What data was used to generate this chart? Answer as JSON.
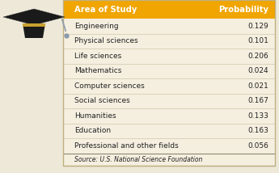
{
  "header": [
    "Area of Study",
    "Probability"
  ],
  "rows": [
    [
      "Engineering",
      "0.129"
    ],
    [
      "Physical sciences",
      "0.101"
    ],
    [
      "Life sciences",
      "0.206"
    ],
    [
      "Mathematics",
      "0.024"
    ],
    [
      "Computer sciences",
      "0.021"
    ],
    [
      "Social sciences",
      "0.167"
    ],
    [
      "Humanities",
      "0.133"
    ],
    [
      "Education",
      "0.163"
    ],
    [
      "Professional and other fields",
      "0.056"
    ]
  ],
  "source": "Source: U.S. National Science Foundation",
  "header_bg": "#F0A500",
  "header_text_color": "#FFFFFF",
  "table_bg": "#F5EFE0",
  "row_line_color": "#D0C8A8",
  "text_color": "#222222",
  "source_line_color": "#888870",
  "outer_bg": "#EDE8D8",
  "cap_body_color": "#1a1a1a",
  "cap_tassel_color": "#8899AA",
  "border_color": "#C0B080"
}
